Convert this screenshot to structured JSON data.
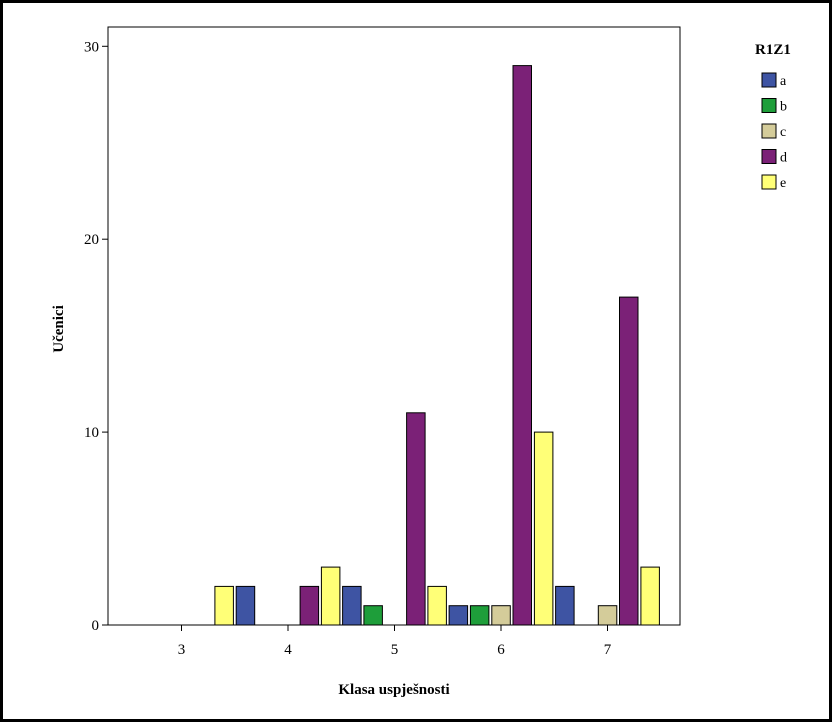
{
  "chart_data": {
    "type": "bar",
    "xlabel": "Klasa uspješnosti",
    "ylabel": "Učenici",
    "categories": [
      "3",
      "4",
      "5",
      "6",
      "7"
    ],
    "ylim": [
      0,
      31
    ],
    "yticks": [
      0,
      10,
      20,
      30
    ],
    "grid": false,
    "legend": {
      "title": "R1Z1",
      "placement": "top-right"
    },
    "series": [
      {
        "name": "a",
        "color": "#3E54A3",
        "values": [
          0,
          2,
          2,
          1,
          2
        ]
      },
      {
        "name": "b",
        "color": "#1E9E3A",
        "values": [
          0,
          0,
          1,
          1,
          0
        ]
      },
      {
        "name": "c",
        "color": "#D4CC9A",
        "values": [
          0,
          0,
          0,
          1,
          1
        ]
      },
      {
        "name": "d",
        "color": "#7B2177",
        "values": [
          0,
          2,
          11,
          29,
          17
        ]
      },
      {
        "name": "e",
        "color": "#FFFF77",
        "values": [
          2,
          3,
          2,
          10,
          3
        ]
      }
    ]
  }
}
